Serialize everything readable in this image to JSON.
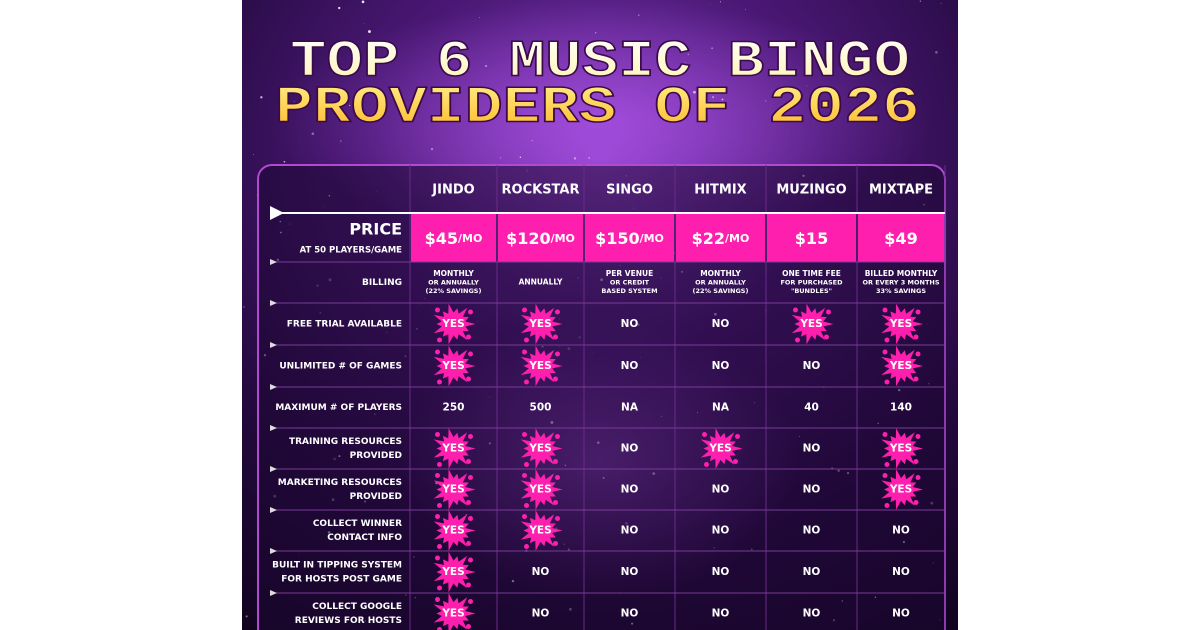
{
  "header": {
    "title_lines": [
      "TOP 6 MUSIC BINGO",
      "PROVIDERS OF 2026"
    ]
  },
  "table": {
    "columns": [
      "JINDO",
      "ROCKSTAR",
      "SINGO",
      "HITMIX",
      "MUZINGO",
      "MIXTAPE"
    ],
    "splat_color": "#ff1fae",
    "price": {
      "label": "PRICE",
      "sublabel": "AT 50 PLAYERS/GAME",
      "cells": [
        {
          "amount": "$45",
          "unit": "/MO"
        },
        {
          "amount": "$120",
          "unit": "/MO"
        },
        {
          "amount": "$150",
          "unit": "/MO"
        },
        {
          "amount": "$22",
          "unit": "/MO"
        },
        {
          "amount": "$15"
        },
        {
          "amount": "$49"
        }
      ]
    },
    "billing": {
      "label": "BILLING",
      "cells": [
        [
          "MONTHLY",
          "OR ANNUALLY",
          "(22% SAVINGS)"
        ],
        [
          "ANNUALLY"
        ],
        [
          "PER VENUE",
          "OR CREDIT",
          "BASED SYSTEM"
        ],
        [
          "MONTHLY",
          "OR ANNUALLY",
          "(22% SAVINGS)"
        ],
        [
          "ONE TIME FEE",
          "FOR PURCHASED",
          "\"BUNDLES\""
        ],
        [
          "BILLED MONTHLY",
          "OR EVERY 3 MONTHS",
          "33% SAVINGS"
        ]
      ]
    },
    "rows": [
      {
        "label_lines": [
          "FREE TRIAL AVAILABLE"
        ],
        "cells": [
          "YES",
          "YES",
          "NO",
          "NO",
          "YES",
          "YES"
        ],
        "splat": [
          true,
          true,
          false,
          false,
          true,
          true
        ]
      },
      {
        "label_lines": [
          "UNLIMITED # OF GAMES"
        ],
        "cells": [
          "YES",
          "YES",
          "NO",
          "NO",
          "NO",
          "YES"
        ],
        "splat": [
          true,
          true,
          false,
          false,
          false,
          true
        ]
      },
      {
        "label_lines": [
          "MAXIMUM # OF PLAYERS"
        ],
        "cells": [
          250,
          500,
          "NA",
          "NA",
          40,
          140
        ],
        "splat": [
          false,
          false,
          false,
          false,
          false,
          false
        ]
      },
      {
        "label_lines": [
          "TRAINING RESOURCES",
          "PROVIDED"
        ],
        "cells": [
          "YES",
          "YES",
          "NO",
          "YES",
          "NO",
          "YES"
        ],
        "splat": [
          true,
          true,
          false,
          true,
          false,
          true
        ]
      },
      {
        "label_lines": [
          "MARKETING RESOURCES",
          "PROVIDED"
        ],
        "cells": [
          "YES",
          "YES",
          "NO",
          "NO",
          "NO",
          "YES"
        ],
        "splat": [
          true,
          true,
          false,
          false,
          false,
          true
        ]
      },
      {
        "label_lines": [
          "COLLECT WINNER",
          "CONTACT INFO"
        ],
        "cells": [
          "YES",
          "YES",
          "NO",
          "NO",
          "NO",
          "NO"
        ],
        "splat": [
          true,
          true,
          false,
          false,
          false,
          false
        ]
      },
      {
        "label_lines": [
          "BUILT IN TIPPING SYSTEM",
          "FOR HOSTS POST GAME"
        ],
        "cells": [
          "YES",
          "NO",
          "NO",
          "NO",
          "NO",
          "NO"
        ],
        "splat": [
          true,
          false,
          false,
          false,
          false,
          false
        ]
      },
      {
        "label_lines": [
          "COLLECT GOOGLE",
          "REVIEWS FOR HOSTS"
        ],
        "cells": [
          "YES",
          "NO",
          "NO",
          "NO",
          "NO",
          "NO"
        ],
        "splat": [
          true,
          false,
          false,
          false,
          false,
          false
        ]
      }
    ]
  }
}
